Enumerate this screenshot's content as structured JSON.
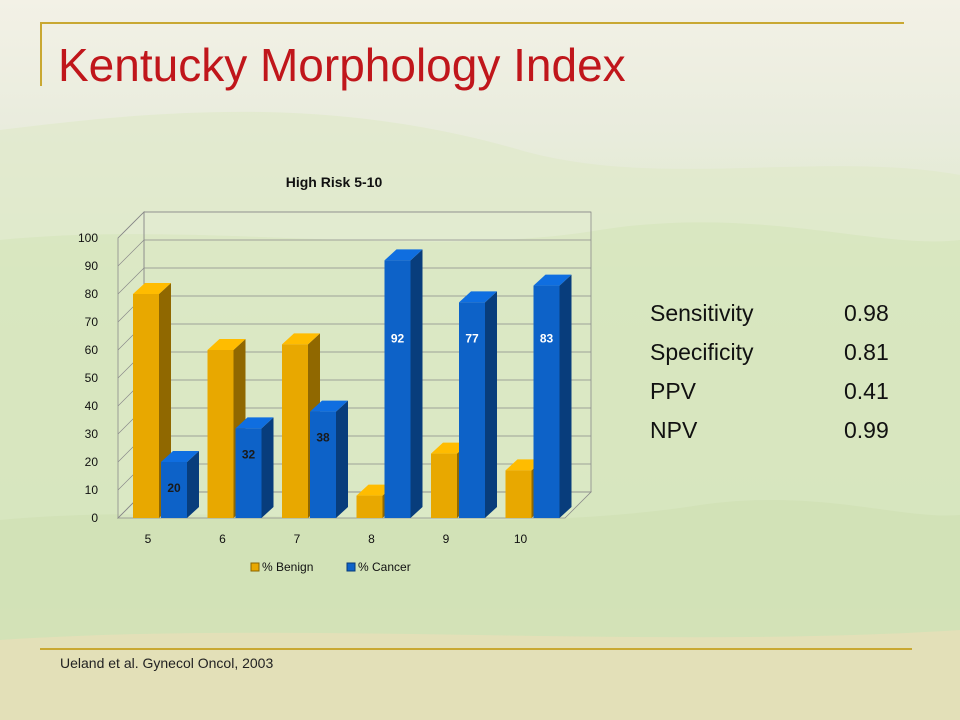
{
  "slide": {
    "title": "Kentucky Morphology Index",
    "citation": "Ueland et al. Gynecol Oncol, 2003"
  },
  "stats": [
    {
      "label": "Sensitivity",
      "value": "0.98"
    },
    {
      "label": "Specificity",
      "value": "0.81"
    },
    {
      "label": "PPV",
      "value": "0.41"
    },
    {
      "label": "NPV",
      "value": "0.99"
    }
  ],
  "colors": {
    "benign": "#e8a800",
    "cancer": "#0d62c8",
    "title": "#c0161b",
    "rule": "#c9a832"
  },
  "chart_data": {
    "type": "bar",
    "title": "High Risk 5-10",
    "categories": [
      "5",
      "6",
      "7",
      "8",
      "9",
      "10"
    ],
    "series": [
      {
        "name": "% Benign",
        "values": [
          80,
          60,
          62,
          8,
          23,
          17
        ]
      },
      {
        "name": "% Cancer",
        "values": [
          20,
          32,
          38,
          92,
          77,
          83
        ],
        "labels": [
          "20",
          "32",
          "38",
          "92",
          "77",
          "83"
        ]
      }
    ],
    "ylim": [
      0,
      100
    ],
    "yticks": [
      "0",
      "10",
      "20",
      "30",
      "40",
      "50",
      "60",
      "70",
      "80",
      "90",
      "100"
    ],
    "legend": "bottom",
    "grid": true
  }
}
